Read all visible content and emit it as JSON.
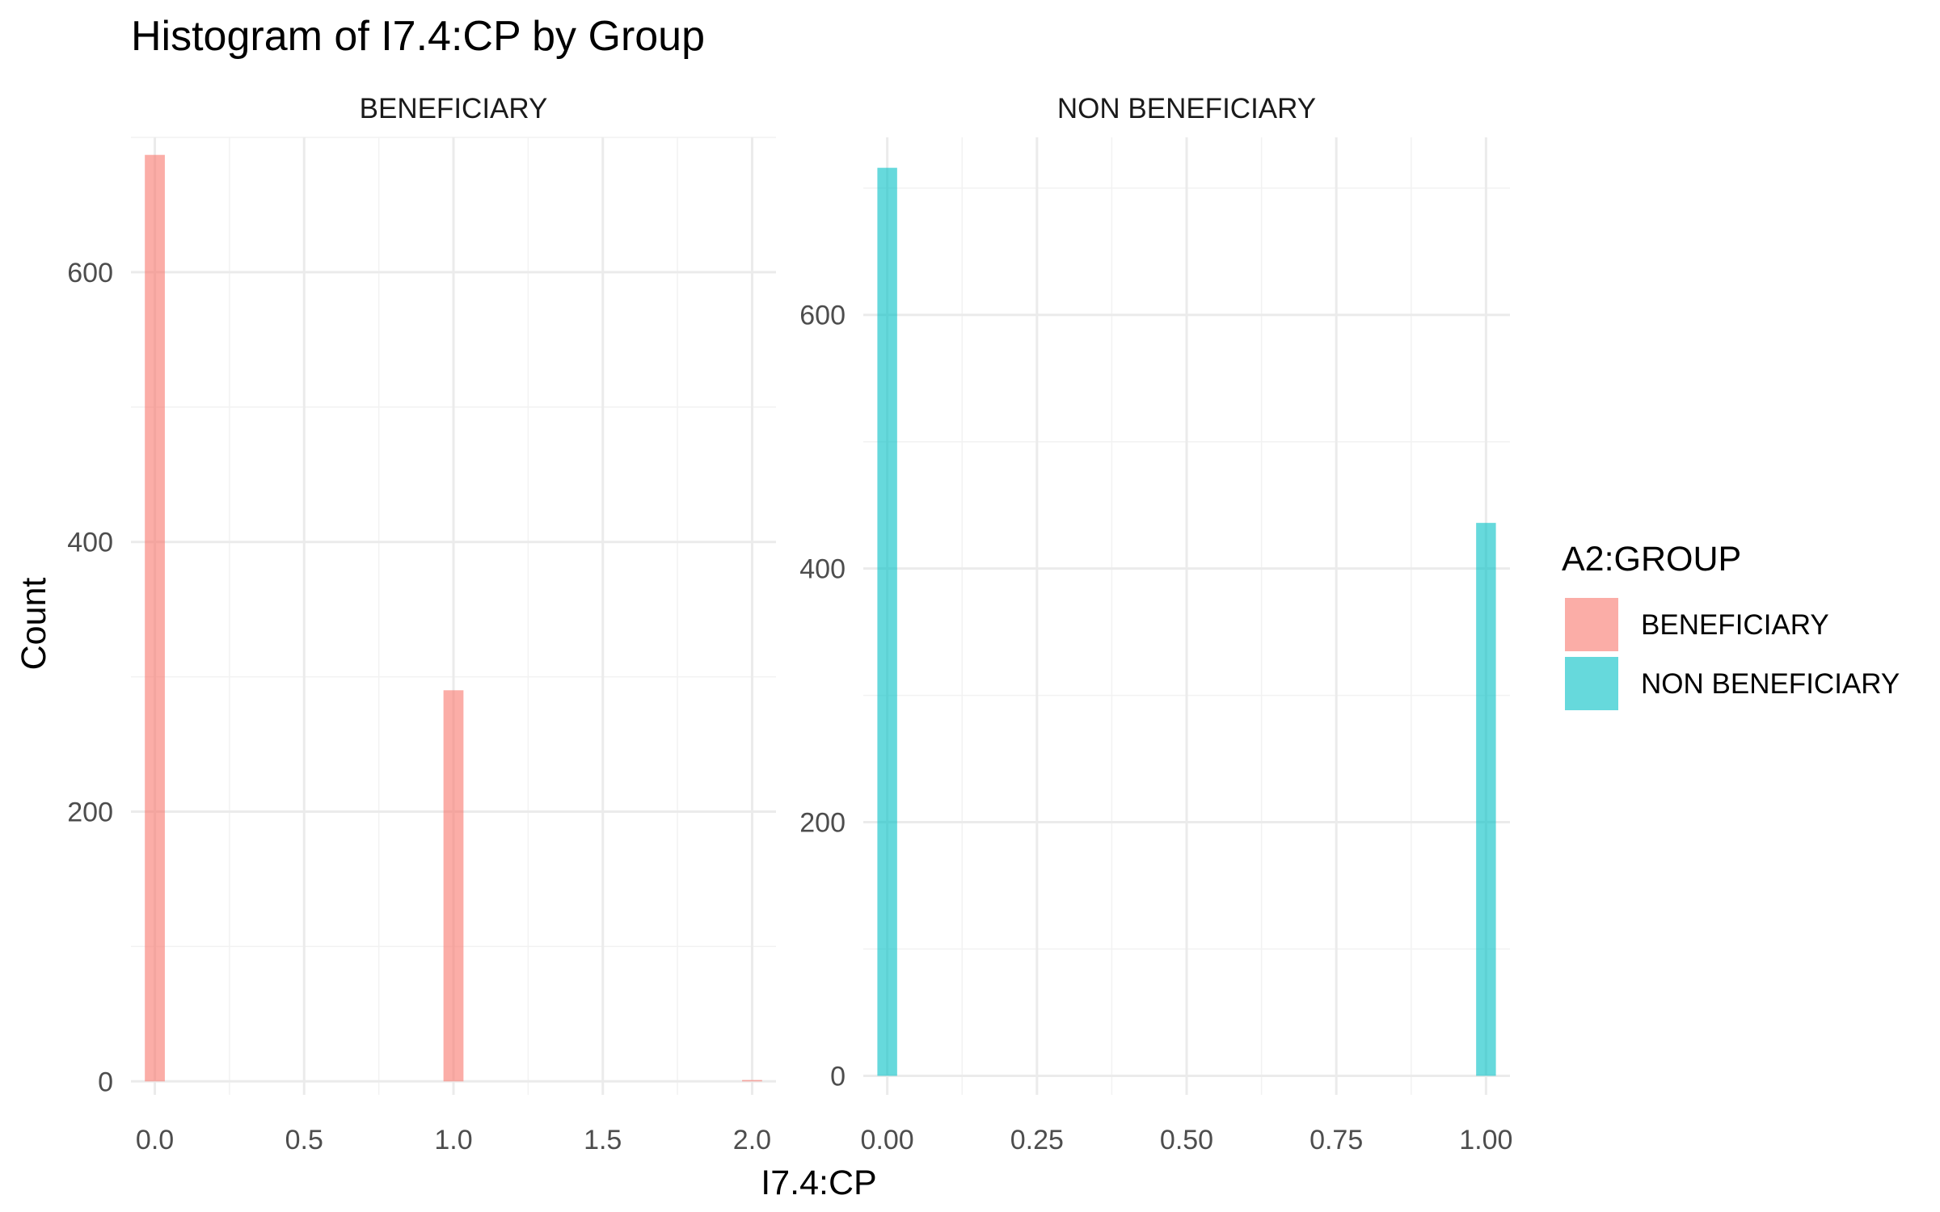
{
  "chart_data": {
    "type": "bar",
    "title": "Histogram of I7.4:CP by Group",
    "xlabel": "I7.4:CP",
    "ylabel": "Count",
    "legend": {
      "title": "A2:GROUP",
      "position": "right",
      "entries": [
        {
          "label": "BENEFICIARY",
          "color": "#F8766D"
        },
        {
          "label": "NON BENEFICIARY",
          "color": "#00BFC4"
        }
      ]
    },
    "grid": true,
    "panels": [
      {
        "strip": "BENEFICIARY",
        "color": "#F8766D",
        "xlim": [
          -0.08,
          2.08
        ],
        "ylim": [
          -10,
          700
        ],
        "x_ticks": [
          0.0,
          0.5,
          1.0,
          1.5,
          2.0
        ],
        "x_tick_labels": [
          "0.0",
          "0.5",
          "1.0",
          "1.5",
          "2.0"
        ],
        "y_ticks": [
          0,
          200,
          400,
          600
        ],
        "y_tick_labels": [
          "0",
          "200",
          "400",
          "600"
        ],
        "bin_width": 0.067,
        "bars": [
          {
            "x": 0.0,
            "count": 687
          },
          {
            "x": 1.0,
            "count": 290
          },
          {
            "x": 2.0,
            "count": 1
          }
        ]
      },
      {
        "strip": "NON BENEFICIARY",
        "color": "#00BFC4",
        "xlim": [
          -0.04,
          1.04
        ],
        "ylim": [
          -15,
          740
        ],
        "x_ticks": [
          0.0,
          0.25,
          0.5,
          0.75,
          1.0
        ],
        "x_tick_labels": [
          "0.00",
          "0.25",
          "0.50",
          "0.75",
          "1.00"
        ],
        "y_ticks": [
          0,
          200,
          400,
          600
        ],
        "y_tick_labels": [
          "0",
          "200",
          "400",
          "600"
        ],
        "bin_width": 0.033,
        "bars": [
          {
            "x": 0.0,
            "count": 716
          },
          {
            "x": 1.0,
            "count": 436
          }
        ]
      }
    ]
  }
}
